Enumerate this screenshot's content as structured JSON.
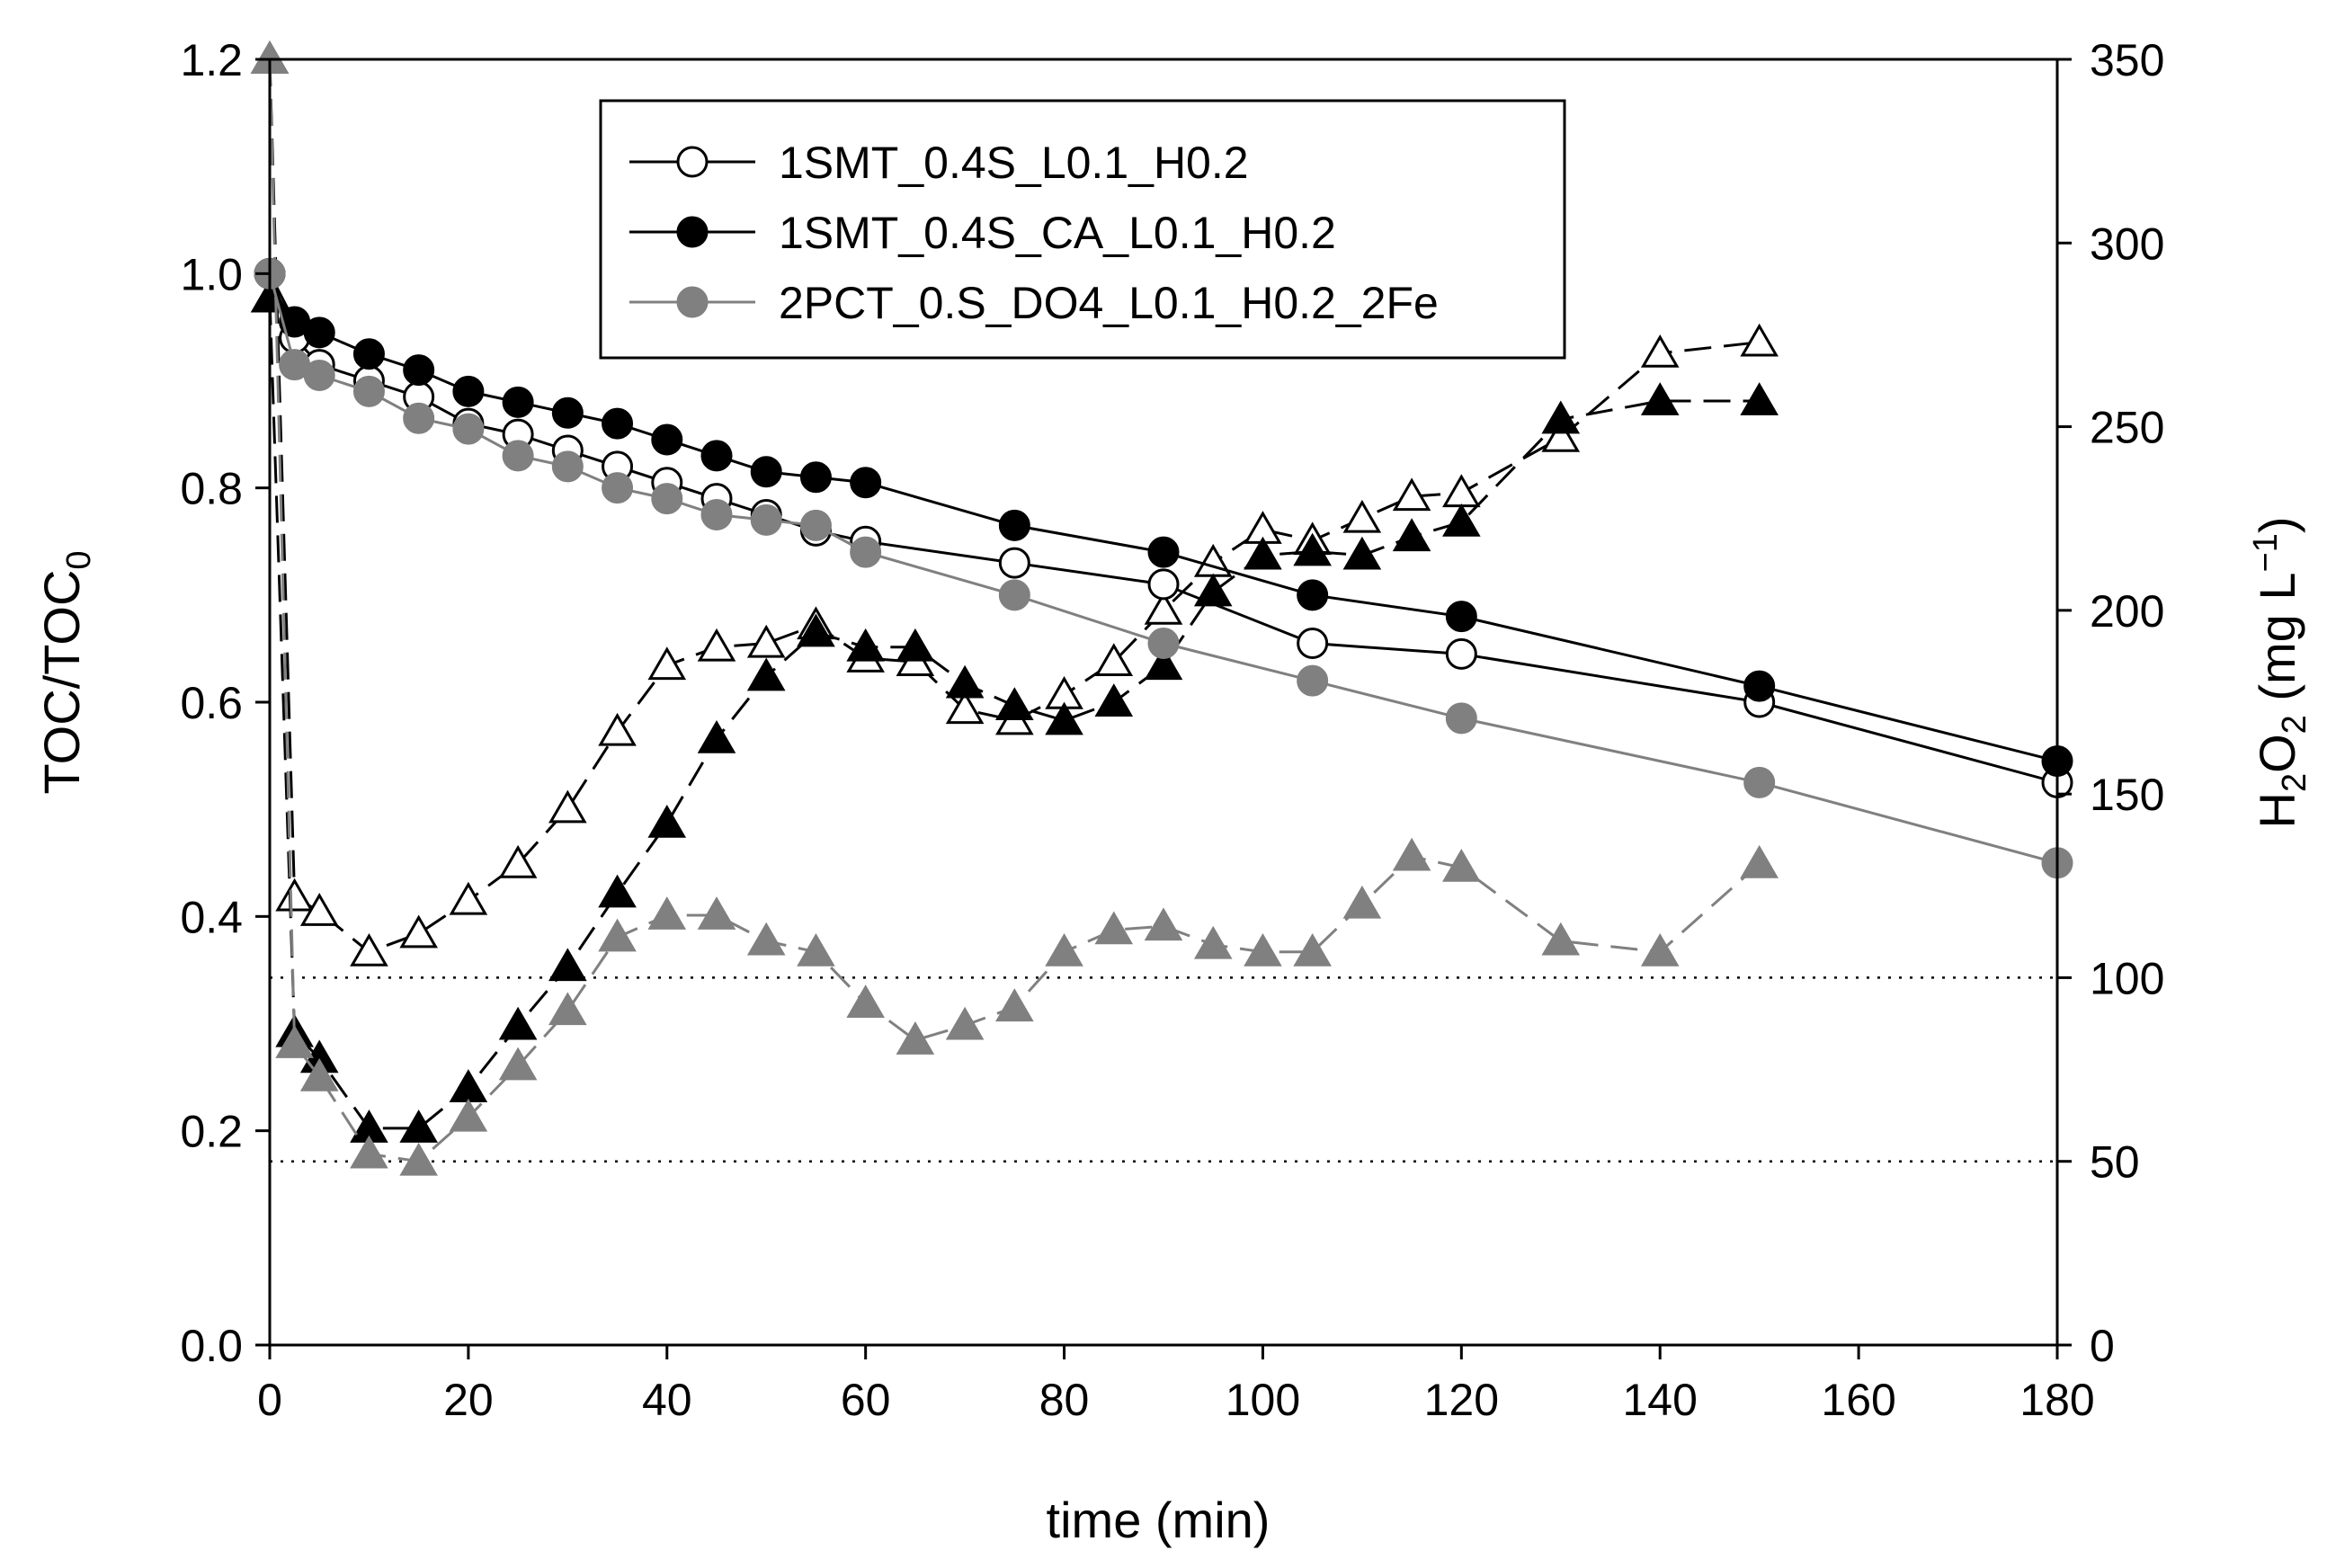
{
  "chart_data": {
    "type": "line",
    "title": "",
    "xlabel": "time (min)",
    "ylabel_left": {
      "main": "TOC/TOC",
      "sub": "0"
    },
    "ylabel_right": {
      "h": "H",
      "sub1": "2",
      "o": "O",
      "sub2": "2",
      "units_open": " (mg L",
      "sup": "−1",
      "units_close": ")"
    },
    "xlim": [
      0,
      180
    ],
    "ylim_left": [
      0,
      1.2
    ],
    "ylim_right": [
      0,
      350
    ],
    "xticks": [
      "0",
      "20",
      "40",
      "60",
      "80",
      "100",
      "120",
      "140",
      "160",
      "180"
    ],
    "yticks_left": [
      "0.0",
      "0.2",
      "0.4",
      "0.6",
      "0.8",
      "1.0",
      "1.2"
    ],
    "yticks_right": [
      "0",
      "50",
      "100",
      "150",
      "200",
      "250",
      "300",
      "350"
    ],
    "reference_lines_right": [
      50,
      100
    ],
    "legend": [
      {
        "label": "1SMT_0.4S_L0.1_H0.2",
        "marker": "circle-open",
        "color": "#000000"
      },
      {
        "label": "1SMT_0.4S_CA_L0.1_H0.2",
        "marker": "circle-filled",
        "color": "#000000"
      },
      {
        "label": "2PCT_0.S_DO4_L0.1_H0.2_2Fe",
        "marker": "circle-filled",
        "color": "#808080"
      }
    ],
    "series": [
      {
        "name": "1SMT_0.4S_L0.1_H0.2 TOC/TOC0",
        "axis": "left",
        "marker": "circle-open",
        "color": "#000000",
        "dash": "solid",
        "x": [
          0,
          2.5,
          5,
          10,
          15,
          20,
          25,
          30,
          35,
          40,
          45,
          50,
          55,
          60,
          75,
          90,
          105,
          120,
          150,
          180
        ],
        "y": [
          1.0,
          0.94,
          0.915,
          0.9,
          0.885,
          0.86,
          0.85,
          0.835,
          0.82,
          0.805,
          0.79,
          0.775,
          0.76,
          0.75,
          0.73,
          0.71,
          0.655,
          0.645,
          0.6,
          0.525
        ]
      },
      {
        "name": "1SMT_0.4S_CA_L0.1_H0.2 TOC/TOC0",
        "axis": "left",
        "marker": "circle-filled",
        "color": "#000000",
        "dash": "solid",
        "x": [
          0,
          2.5,
          5,
          10,
          15,
          20,
          25,
          30,
          35,
          40,
          45,
          50,
          55,
          60,
          75,
          90,
          105,
          120,
          150,
          180
        ],
        "y": [
          1.0,
          0.955,
          0.945,
          0.925,
          0.91,
          0.89,
          0.88,
          0.87,
          0.86,
          0.845,
          0.83,
          0.815,
          0.81,
          0.805,
          0.765,
          0.74,
          0.7,
          0.68,
          0.615,
          0.545
        ]
      },
      {
        "name": "2PCT_0.S_DO4_L0.1_H0.2_2Fe TOC/TOC0",
        "axis": "left",
        "marker": "circle-filled",
        "color": "#808080",
        "dash": "solid",
        "x": [
          0,
          2.5,
          5,
          10,
          15,
          20,
          25,
          30,
          35,
          40,
          45,
          50,
          55,
          60,
          75,
          90,
          105,
          120,
          150,
          180
        ],
        "y": [
          1.0,
          0.915,
          0.905,
          0.89,
          0.865,
          0.855,
          0.83,
          0.82,
          0.8,
          0.79,
          0.775,
          0.77,
          0.765,
          0.74,
          0.7,
          0.655,
          0.62,
          0.585,
          0.525,
          0.45
        ]
      },
      {
        "name": "1SMT_0.4S_L0.1_H0.2 H2O2",
        "axis": "right",
        "marker": "triangle-open",
        "color": "#000000",
        "dash": "dashed",
        "x": [
          0,
          2.5,
          5,
          10,
          15,
          20,
          25,
          30,
          35,
          40,
          45,
          50,
          55,
          60,
          65,
          70,
          75,
          80,
          85,
          90,
          95,
          100,
          105,
          110,
          115,
          120,
          130,
          140,
          150
        ],
        "y": [
          350,
          122,
          118,
          107,
          112,
          121,
          131,
          146,
          167,
          185,
          190,
          191,
          196,
          187,
          186,
          173,
          170,
          177,
          186,
          200,
          213,
          222,
          219,
          225,
          231,
          232,
          247,
          270,
          273
        ]
      },
      {
        "name": "1SMT_0.4S_CA_L0.1_H0.2 H2O2",
        "axis": "right",
        "marker": "triangle-filled",
        "color": "#000000",
        "dash": "dashed",
        "x": [
          0,
          2.5,
          5,
          10,
          15,
          20,
          25,
          30,
          35,
          40,
          45,
          50,
          55,
          60,
          65,
          70,
          75,
          80,
          85,
          90,
          95,
          100,
          105,
          110,
          115,
          120,
          130,
          140,
          150
        ],
        "y": [
          285,
          85,
          78,
          59,
          59,
          70,
          87,
          103,
          123,
          142,
          165,
          182,
          194,
          190,
          190,
          180,
          174,
          170,
          175,
          185,
          205,
          215,
          216,
          215,
          220,
          224,
          252,
          257,
          257
        ]
      },
      {
        "name": "2PCT_0.S_DO4_L0.1_H0.2_2Fe H2O2",
        "axis": "right",
        "marker": "triangle-filled",
        "color": "#808080",
        "dash": "dashed",
        "x": [
          0,
          2.5,
          5,
          10,
          15,
          20,
          25,
          30,
          35,
          40,
          45,
          50,
          55,
          60,
          65,
          70,
          75,
          80,
          85,
          90,
          95,
          100,
          105,
          110,
          115,
          120,
          130,
          140,
          150
        ],
        "y": [
          350,
          82,
          73,
          52,
          50,
          62,
          76,
          91,
          111,
          117,
          117,
          110,
          107,
          93,
          83,
          87,
          92,
          107,
          113,
          114,
          109,
          107,
          107,
          120,
          133,
          130,
          110,
          107,
          131
        ]
      }
    ]
  }
}
